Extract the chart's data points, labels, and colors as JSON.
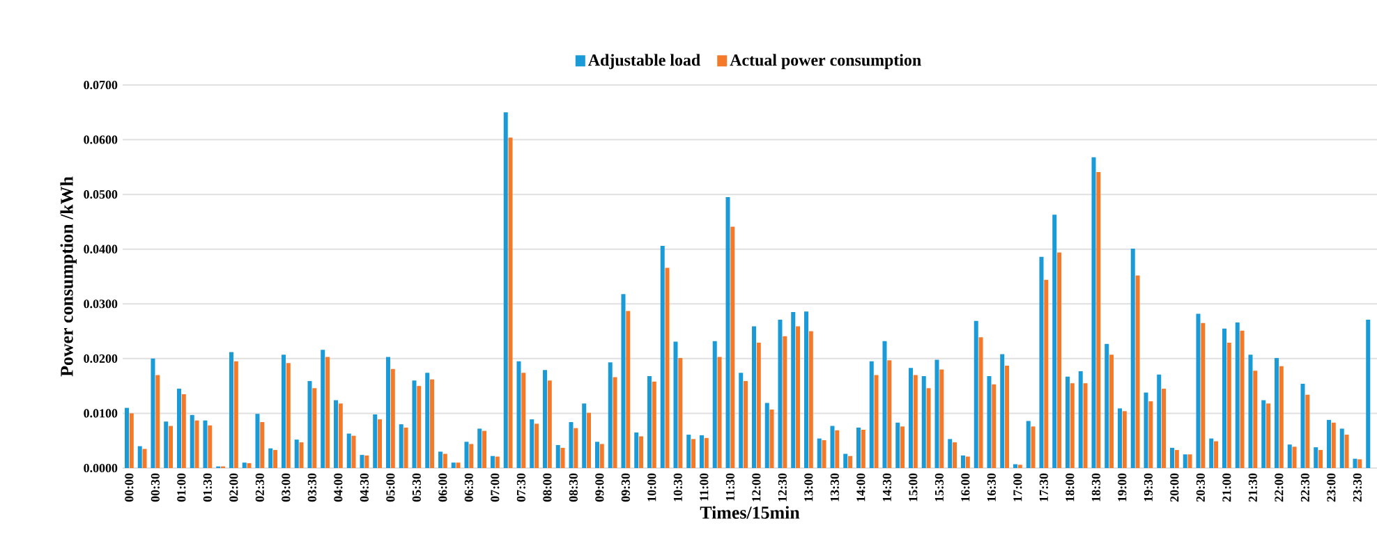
{
  "chart_data": {
    "type": "bar",
    "xlabel": "Times/15min",
    "ylabel": "Power consumption /kWh",
    "categories": [
      "00:00",
      null,
      "00:30",
      null,
      "01:00",
      null,
      "01:30",
      null,
      "02:00",
      null,
      "02:30",
      null,
      "03:00",
      null,
      "03:30",
      null,
      "04:00",
      null,
      "04:30",
      null,
      "05:00",
      null,
      "05:30",
      null,
      "06:00",
      null,
      "06:30",
      null,
      "07:00",
      null,
      "07:30",
      null,
      "08:00",
      null,
      "08:30",
      null,
      "09:00",
      null,
      "09:30",
      null,
      "10:00",
      null,
      "10:30",
      null,
      "11:00",
      null,
      "11:30",
      null,
      "12:00",
      null,
      "12:30",
      null,
      "13:00",
      null,
      "13:30",
      null,
      "14:00",
      null,
      "14:30",
      null,
      "15:00",
      null,
      "15:30",
      null,
      "16:00",
      null,
      "16:30",
      null,
      "17:00",
      null,
      "17:30",
      null,
      "18:00",
      null,
      "18:30",
      null,
      "19:00",
      null,
      "19:30",
      null,
      "20:00",
      null,
      "20:30",
      null,
      "21:00",
      null,
      "21:30",
      null,
      "22:00",
      null,
      "22:30",
      null,
      "23:00",
      null,
      "23:30",
      null
    ],
    "series": [
      {
        "name": "Adjustable load",
        "color": "#1a9ad6",
        "values": [
          0.011,
          0.004,
          0.02,
          0.0085,
          0.0145,
          0.0097,
          0.0087,
          0.0003,
          0.0212,
          0.001,
          0.0099,
          0.0036,
          0.0207,
          0.0052,
          0.0159,
          0.0216,
          0.0124,
          0.0063,
          0.0024,
          0.0098,
          0.0203,
          0.008,
          0.016,
          0.0174,
          0.003,
          0.001,
          0.0048,
          0.0072,
          0.0022,
          0.065,
          0.0195,
          0.0089,
          0.0179,
          0.0042,
          0.0084,
          0.0118,
          0.0048,
          0.0193,
          0.0318,
          0.0065,
          0.0168,
          0.0406,
          0.0231,
          0.0061,
          0.006,
          0.0232,
          0.0495,
          0.0174,
          0.0259,
          0.0119,
          0.0271,
          0.0285,
          0.0286,
          0.0054,
          0.0077,
          0.0026,
          0.0074,
          0.0195,
          0.0232,
          0.0083,
          0.0183,
          0.0168,
          0.0198,
          0.0053,
          0.0023,
          0.0269,
          0.0168,
          0.0208,
          0.0007,
          0.0086,
          0.0386,
          0.0463,
          0.0167,
          0.0177,
          0.0568,
          0.0227,
          0.0109,
          0.0401,
          0.0138,
          0.0171,
          0.0037,
          0.0025,
          0.0282,
          0.0054,
          0.0255,
          0.0266,
          0.0207,
          0.0124,
          0.0201,
          0.0043,
          0.0154,
          0.0038,
          0.0088,
          0.0072,
          0.0017,
          0.0271
        ]
      },
      {
        "name": "Actual power consumption",
        "color": "#f47a2a",
        "values": [
          0.01,
          0.0035,
          0.017,
          0.0077,
          0.0135,
          0.0087,
          0.0078,
          0.0003,
          0.0195,
          0.0009,
          0.0084,
          0.0033,
          0.0192,
          0.0047,
          0.0146,
          0.0203,
          0.0118,
          0.0059,
          0.0023,
          0.0089,
          0.0181,
          0.0074,
          0.015,
          0.0162,
          0.0026,
          0.001,
          0.0044,
          0.0068,
          0.0021,
          0.0604,
          0.0174,
          0.0081,
          0.016,
          0.0037,
          0.0073,
          0.0101,
          0.0044,
          0.0166,
          0.0287,
          0.0058,
          0.0158,
          0.0366,
          0.0201,
          0.0053,
          0.0055,
          0.0203,
          0.0441,
          0.0159,
          0.0229,
          0.0107,
          0.0241,
          0.0259,
          0.025,
          0.0051,
          0.0069,
          0.0022,
          0.007,
          0.017,
          0.0197,
          0.0076,
          0.017,
          0.0146,
          0.018,
          0.0047,
          0.0021,
          0.0239,
          0.0153,
          0.0187,
          0.0006,
          0.0076,
          0.0344,
          0.0394,
          0.0155,
          0.0155,
          0.0541,
          0.0207,
          0.0104,
          0.0352,
          0.0122,
          0.0145,
          0.0033,
          0.0025,
          0.0265,
          0.0049,
          0.0229,
          0.0251,
          0.0178,
          0.0118,
          0.0186,
          0.0039,
          0.0134,
          0.0033,
          0.0083,
          0.0061,
          0.0016,
          null
        ]
      }
    ],
    "ylim": [
      0,
      0.07
    ],
    "yticks": [
      {
        "value": 0,
        "label": "0.0000"
      },
      {
        "value": 0.01,
        "label": "0.0100"
      },
      {
        "value": 0.02,
        "label": "0.0200"
      },
      {
        "value": 0.03,
        "label": "0.0300"
      },
      {
        "value": 0.04,
        "label": "0.0400"
      },
      {
        "value": 0.05,
        "label": "0.0500"
      },
      {
        "value": 0.06,
        "label": "0.0600"
      },
      {
        "value": 0.07,
        "label": "0.0700"
      }
    ],
    "grid": "y",
    "legend": "top"
  }
}
